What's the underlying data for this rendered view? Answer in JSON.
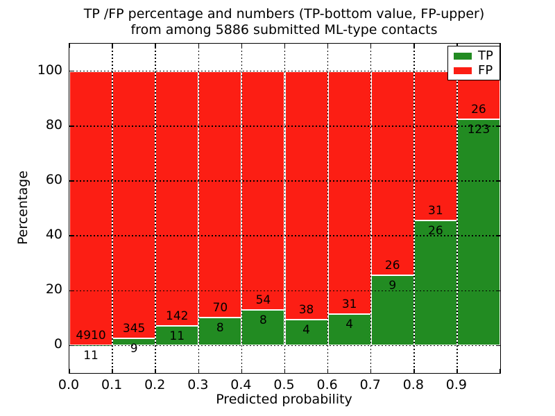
{
  "title": {
    "line1": "TP /FP percentage and numbers (TP-bottom value, FP-upper)",
    "line2": "from among 5886 submitted ML-type contacts"
  },
  "colors": {
    "tp": "#228b22",
    "fp": "#fc1e14",
    "bar_edge": "#ffffff",
    "grid": "#000000",
    "text": "#000000",
    "background": "#ffffff"
  },
  "legend": {
    "items": [
      {
        "label": "TP",
        "series": "tp"
      },
      {
        "label": "FP",
        "series": "fp"
      }
    ],
    "position": "upper right"
  },
  "chart_data": {
    "type": "bar",
    "stacked": true,
    "normalized": "each 0.1-probability bin scaled to 100%",
    "title": "TP /FP percentage and numbers (TP-bottom value, FP-upper) from among 5886 submitted ML-type contacts",
    "xlabel": "Predicted probability",
    "ylabel": "Percentage",
    "xlim": [
      0.0,
      1.0
    ],
    "ylim": [
      -10,
      110
    ],
    "bin_width": 0.1,
    "bin_starts": [
      0.0,
      0.1,
      0.2,
      0.3,
      0.4,
      0.5,
      0.6,
      0.7,
      0.8,
      0.9
    ],
    "xtick_labels": [
      "0.0",
      "0.1",
      "0.2",
      "0.3",
      "0.4",
      "0.5",
      "0.6",
      "0.7",
      "0.8",
      "0.9"
    ],
    "ytick_values": [
      0,
      20,
      40,
      60,
      80,
      100
    ],
    "ytick_labels": [
      "0",
      "20",
      "40",
      "60",
      "80",
      "100"
    ],
    "grid": "dotted black, drawn above bars",
    "series": [
      {
        "name": "TP",
        "counts": [
          11,
          9,
          11,
          8,
          8,
          4,
          4,
          9,
          26,
          123
        ]
      },
      {
        "name": "FP",
        "counts": [
          4910,
          345,
          142,
          70,
          54,
          38,
          31,
          26,
          31,
          26
        ]
      }
    ],
    "tp_percent_per_bin": [
      0.22,
      2.54,
      7.19,
      10.26,
      12.9,
      9.52,
      11.43,
      25.71,
      45.61,
      82.55
    ],
    "total_contacts": 5886
  }
}
